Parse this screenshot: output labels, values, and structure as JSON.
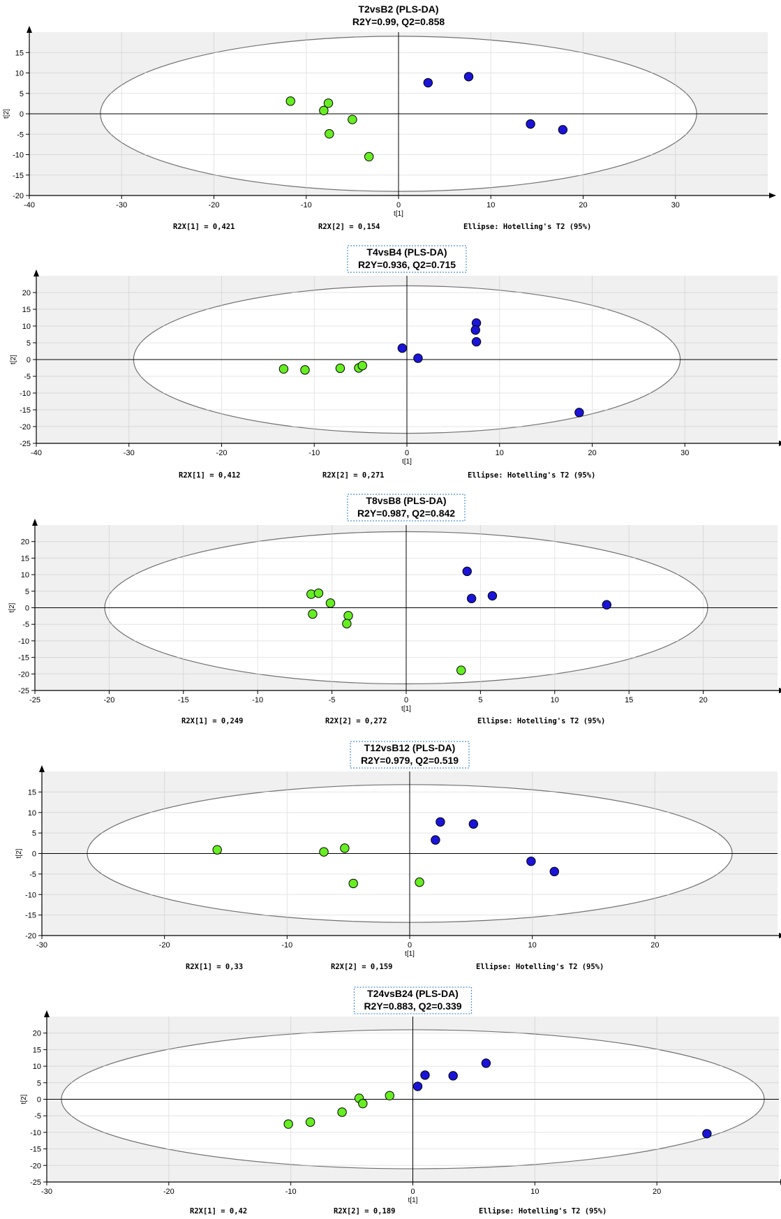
{
  "palette": {
    "plot_background": "#f0f0f0",
    "ellipse_fill": "#ffffff",
    "ellipse_stroke": "#707070",
    "grid": "#d8d8d8",
    "axis": "#000000",
    "title_box_border": "#4a90d9",
    "group_green": "#66ee22",
    "group_blue": "#1a14d9",
    "marker_edge": "#000000"
  },
  "chart_data": [
    {
      "type": "scatter",
      "title": "T2vsB2 (PLS-DA)",
      "subtitle": "R2Y=0.99, Q2=0.858",
      "title_boxed": false,
      "xlabel": "t[1]",
      "ylabel": "t[2]",
      "xlim": [
        -40,
        40
      ],
      "ylim": [
        -20,
        20
      ],
      "x_ticks": [
        -40,
        -30,
        -20,
        -10,
        0,
        10,
        20,
        30
      ],
      "y_ticks": [
        15,
        10,
        5,
        0,
        -5,
        -10,
        -15,
        -20
      ],
      "ellipse": {
        "rx": 32.3,
        "ry": 19.0
      },
      "footer": [
        "R2X[1] = 0,421",
        "R2X[2] = 0,154",
        "Ellipse: Hotelling's T2 (95%)"
      ],
      "series": [
        {
          "color": "#66ee22",
          "points": [
            [
              -11.7,
              3.1
            ],
            [
              -7.6,
              2.6
            ],
            [
              -8.1,
              0.8
            ],
            [
              -5,
              -1.4
            ],
            [
              -7.5,
              -4.9
            ],
            [
              -3.2,
              -10.5
            ]
          ]
        },
        {
          "color": "#1a14d9",
          "points": [
            [
              3.2,
              7.6
            ],
            [
              7.6,
              9.1
            ],
            [
              14.3,
              -2.5
            ],
            [
              17.8,
              -3.9
            ]
          ]
        }
      ]
    },
    {
      "type": "scatter",
      "title": "T4vsB4       (PLS-DA)",
      "subtitle": "R2Y=0.936, Q2=0.715",
      "title_boxed": true,
      "xlabel": "t[1]",
      "ylabel": "t[2]",
      "xlim": [
        -40,
        40
      ],
      "ylim": [
        -25,
        25
      ],
      "x_ticks": [
        -40,
        -30,
        -20,
        -10,
        0,
        10,
        20,
        30
      ],
      "y_ticks": [
        20,
        15,
        10,
        5,
        0,
        -5,
        -10,
        -15,
        -20,
        -25
      ],
      "ellipse": {
        "rx": 29.5,
        "ry": 22.0
      },
      "footer": [
        "R2X[1] = 0,412",
        "R2X[2] = 0,271",
        "Ellipse: Hotelling's T2 (95%)"
      ],
      "series": [
        {
          "color": "#66ee22",
          "points": [
            [
              -13.3,
              -2.8
            ],
            [
              -11,
              -3.1
            ],
            [
              -7.2,
              -2.6
            ],
            [
              -5.2,
              -2.5
            ],
            [
              -4.8,
              -1.8
            ]
          ]
        },
        {
          "color": "#1a14d9",
          "points": [
            [
              -0.5,
              3.4
            ],
            [
              1.2,
              0.4
            ],
            [
              7.5,
              10.9
            ],
            [
              7.4,
              8.8
            ],
            [
              7.5,
              5.3
            ],
            [
              18.6,
              -15.8
            ]
          ]
        }
      ]
    },
    {
      "type": "scatter",
      "title": "T8vsB8       (PLS-DA)",
      "subtitle": "R2Y=0.987, Q2=0.842",
      "title_boxed": true,
      "xlabel": "t[1]",
      "ylabel": "t[2]",
      "xlim": [
        -25,
        25
      ],
      "ylim": [
        -25,
        25
      ],
      "x_ticks": [
        -25,
        -20,
        -15,
        -10,
        -5,
        0,
        5,
        10,
        15,
        20
      ],
      "y_ticks": [
        20,
        15,
        10,
        5,
        0,
        -5,
        -10,
        -15,
        -20,
        -25
      ],
      "ellipse": {
        "rx": 20.3,
        "ry": 23.0
      },
      "footer": [
        "R2X[1] = 0,249",
        "R2X[2] = 0,272",
        "Ellipse: Hotelling's T2 (95%)"
      ],
      "series": [
        {
          "color": "#66ee22",
          "points": [
            [
              -6.4,
              4.1
            ],
            [
              -5.9,
              4.4
            ],
            [
              -5.1,
              1.4
            ],
            [
              -6.3,
              -1.9
            ],
            [
              -3.9,
              -2.4
            ],
            [
              -4,
              -4.8
            ],
            [
              3.7,
              -18.9
            ]
          ]
        },
        {
          "color": "#1a14d9",
          "points": [
            [
              4.1,
              11
            ],
            [
              4.4,
              2.8
            ],
            [
              5.8,
              3.6
            ],
            [
              13.5,
              0.9
            ]
          ]
        }
      ]
    },
    {
      "type": "scatter",
      "title": "T12vsB12       (PLS-DA)",
      "subtitle": "R2Y=0.979, Q2=0.519",
      "title_boxed": true,
      "xlabel": "t[1]",
      "ylabel": "t[2]",
      "xlim": [
        -30,
        30
      ],
      "ylim": [
        -20,
        20
      ],
      "x_ticks": [
        -30,
        -20,
        -10,
        0,
        10,
        20
      ],
      "y_ticks": [
        15,
        10,
        5,
        0,
        -5,
        -10,
        -15,
        -20
      ],
      "ellipse": {
        "rx": 26.3,
        "ry": 16.8
      },
      "footer": [
        "R2X[1] = 0,33",
        "R2X[2] = 0,159",
        "Ellipse: Hotelling's T2 (95%)"
      ],
      "series": [
        {
          "color": "#66ee22",
          "points": [
            [
              -15.7,
              0.9
            ],
            [
              -7,
              0.4
            ],
            [
              -5.3,
              1.3
            ],
            [
              -4.6,
              -7.3
            ],
            [
              0.8,
              -7
            ]
          ]
        },
        {
          "color": "#1a14d9",
          "points": [
            [
              2.5,
              7.7
            ],
            [
              5.2,
              7.2
            ],
            [
              2.1,
              3.3
            ],
            [
              9.9,
              -1.9
            ],
            [
              11.8,
              -4.4
            ]
          ]
        }
      ]
    },
    {
      "type": "scatter",
      "title": "T24vsB24       (PLS-DA)",
      "subtitle": "R2Y=0.883, Q2=0.339",
      "title_boxed": true,
      "xlabel": "t[1]",
      "ylabel": "t[2]",
      "xlim": [
        -30,
        30
      ],
      "ylim": [
        -25,
        25
      ],
      "x_ticks": [
        -30,
        -20,
        -10,
        0,
        10,
        20
      ],
      "y_ticks": [
        20,
        15,
        10,
        5,
        0,
        -5,
        -10,
        -15,
        -20,
        -25
      ],
      "ellipse": {
        "rx": 28.8,
        "ry": 21.0
      },
      "footer": [
        "R2X[1] = 0,42",
        "R2X[2] = 0,189",
        "Ellipse: Hotelling's T2 (95%)"
      ],
      "series": [
        {
          "color": "#66ee22",
          "points": [
            [
              -10.2,
              -7.5
            ],
            [
              -8.4,
              -6.9
            ],
            [
              -5.8,
              -3.9
            ],
            [
              -4.4,
              0.3
            ],
            [
              -4.1,
              -1.3
            ],
            [
              -1.9,
              1.1
            ]
          ]
        },
        {
          "color": "#1a14d9",
          "points": [
            [
              0.4,
              3.9
            ],
            [
              1,
              7.3
            ],
            [
              3.3,
              7.1
            ],
            [
              6,
              10.9
            ],
            [
              24.1,
              -10.4
            ]
          ]
        }
      ]
    }
  ]
}
